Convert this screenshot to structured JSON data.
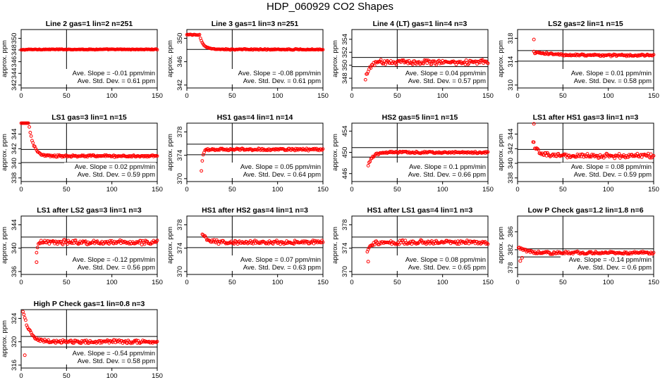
{
  "page": {
    "title": "HDP_060929  CO2 Shapes"
  },
  "chart_data": [
    {
      "type": "scatter",
      "title": "Line 2 gas=1 lin=2 n=251",
      "ylabel": "approx. ppm",
      "xlim": [
        0,
        150
      ],
      "ylim": [
        341.5,
        351.5
      ],
      "yticks": [
        342,
        344,
        346,
        348,
        350
      ],
      "xticks": [
        0,
        50,
        100,
        150
      ],
      "hlines": [
        348.1
      ],
      "vline": 50,
      "annotations": [
        "Ave. Slope = -0.01 ppm/min",
        "Ave. Std. Dev. = 0.61 ppm"
      ],
      "shape": {
        "start": 0,
        "end": 150,
        "initial": 348,
        "final": 348.1,
        "tau": 5,
        "noise": 0.05,
        "outliers": []
      }
    },
    {
      "type": "scatter",
      "title": "Line 3 gas=1 lin=3 n=251",
      "ylabel": "approx. ppm",
      "xlim": [
        0,
        150
      ],
      "ylim": [
        341.5,
        351.5
      ],
      "yticks": [
        342,
        346,
        350
      ],
      "xticks": [
        0,
        50,
        100,
        150
      ],
      "hlines": [
        348.1
      ],
      "vline": 50,
      "annotations": [
        "Ave. Slope = -0.08 ppm/min",
        "Ave. Std. Dev. = 0.61 ppm"
      ],
      "shape": {
        "start": 0,
        "end": 150,
        "initial": 350.6,
        "final": 348.1,
        "tau": 4,
        "delay": 14,
        "noise": 0.07,
        "outliers": []
      }
    },
    {
      "type": "scatter",
      "title": "Line 4 (LT) gas=1 lin=4 n=3",
      "ylabel": "approx. ppm",
      "xlim": [
        0,
        150
      ],
      "ylim": [
        346.5,
        355.5
      ],
      "yticks": [
        348,
        350,
        352,
        354
      ],
      "xticks": [
        0,
        50,
        100,
        150
      ],
      "hlines": [
        351.2,
        349.8
      ],
      "vline": 50,
      "annotations": [
        "Ave. Slope = 0.04 ppm/min",
        "Ave. Std. Dev. = 0.57 ppm"
      ],
      "shape": {
        "start": 15,
        "end": 150,
        "initial": 347.6,
        "final": 350.5,
        "tau": 4,
        "noise": 0.3,
        "outliers": []
      }
    },
    {
      "type": "scatter",
      "title": "LS2 gas=2 lin=1 n=15",
      "ylabel": "approx. ppm",
      "xlim": [
        0,
        150
      ],
      "ylim": [
        309.5,
        319.5
      ],
      "yticks": [
        310,
        314,
        318
      ],
      "xticks": [
        0,
        50,
        100,
        150
      ],
      "hlines": [
        315.9,
        314.1
      ],
      "vline": 50,
      "annotations": [
        "Ave. Slope = 0.01 ppm/min",
        "Ave. Std. Dev. = 0.58 ppm"
      ],
      "shape": {
        "start": 18,
        "end": 150,
        "initial": 315.6,
        "final": 315.1,
        "tau": 20,
        "noise": 0.15,
        "outliers": [
          [
            18,
            317.8
          ]
        ]
      }
    },
    {
      "type": "scatter",
      "title": "LS1 gas=3 lin=1 n=15",
      "ylabel": "approx. ppm",
      "xlim": [
        0,
        150
      ],
      "ylim": [
        337.5,
        345.5
      ],
      "yticks": [
        338,
        340,
        342,
        344
      ],
      "xticks": [
        0,
        50,
        100,
        150
      ],
      "hlines": [
        341.9,
        340.1
      ],
      "vline": 50,
      "annotations": [
        "Ave. Slope = 0.02 ppm/min",
        "Ave. Std. Dev. = 0.59 ppm"
      ],
      "shape": {
        "start": 0,
        "end": 150,
        "initial": 345.8,
        "final": 341,
        "tau": 5,
        "delay": 8,
        "noise": 0.12,
        "outliers": []
      }
    },
    {
      "type": "scatter",
      "title": "HS1 gas=4 lin=1 n=14",
      "ylabel": "approx. ppm",
      "xlim": [
        0,
        150
      ],
      "ylim": [
        369.5,
        379.5
      ],
      "yticks": [
        370,
        374,
        378
      ],
      "xticks": [
        0,
        50,
        100,
        150
      ],
      "hlines": [
        375.9,
        374.1
      ],
      "vline": 50,
      "annotations": [
        "Ave. Slope = 0.05 ppm/min",
        "Ave. Std. Dev. = 0.64 ppm"
      ],
      "shape": {
        "start": 16,
        "end": 150,
        "initial": 371.2,
        "final": 375,
        "tau": 1.5,
        "noise": 0.15,
        "outliers": []
      }
    },
    {
      "type": "scatter",
      "title": "HS2 gas=5 lin=1 n=15",
      "ylabel": "approx. ppm",
      "xlim": [
        0,
        150
      ],
      "ylim": [
        444.5,
        455.5
      ],
      "yticks": [
        446,
        450,
        454
      ],
      "xticks": [
        0,
        50,
        100,
        150
      ],
      "hlines": [
        450.9,
        449.1
      ],
      "vline": 50,
      "annotations": [
        "Ave. Slope = 0.1 ppm/min",
        "Ave. Std. Dev. = 0.66 ppm"
      ],
      "shape": {
        "start": 18,
        "end": 150,
        "initial": 447.6,
        "final": 450,
        "tau": 5,
        "noise": 0.15,
        "outliers": []
      }
    },
    {
      "type": "scatter",
      "title": "LS1 after HS1 gas=3 lin=1 n=3",
      "ylabel": "approx. ppm",
      "xlim": [
        0,
        150
      ],
      "ylim": [
        337.5,
        345.5
      ],
      "yticks": [
        338,
        340,
        342,
        344
      ],
      "xticks": [
        0,
        50,
        100,
        150
      ],
      "hlines": [
        341.9,
        340.1
      ],
      "vline": 50,
      "annotations": [
        "Ave. Slope = 0.08 ppm/min",
        "Ave. Std. Dev. = 0.59 ppm"
      ],
      "shape": {
        "start": 17,
        "end": 150,
        "initial": 343,
        "final": 341,
        "tau": 5,
        "noise": 0.25,
        "outliers": [
          [
            18,
            346
          ]
        ]
      }
    },
    {
      "type": "scatter",
      "title": "LS1 after LS2 gas=3 lin=1 n=3",
      "ylabel": "approx. ppm",
      "xlim": [
        0,
        150
      ],
      "ylim": [
        335.5,
        345.5
      ],
      "yticks": [
        336,
        340,
        344
      ],
      "xticks": [
        0,
        50,
        100,
        150
      ],
      "hlines": [
        341.9,
        340.1
      ],
      "vline": 50,
      "annotations": [
        "Ave. Slope = -0.12 ppm/min",
        "Ave. Std. Dev. = 0.56 ppm"
      ],
      "shape": {
        "start": 17,
        "end": 150,
        "initial": 339.5,
        "final": 341,
        "tau": 1.5,
        "noise": 0.3,
        "outliers": [
          [
            17,
            337.6
          ]
        ]
      }
    },
    {
      "type": "scatter",
      "title": "HS1 after HS2 gas=4 lin=1 n=3",
      "ylabel": "approx. ppm",
      "xlim": [
        0,
        150
      ],
      "ylim": [
        369.5,
        379.5
      ],
      "yticks": [
        370,
        374,
        378
      ],
      "xticks": [
        0,
        50,
        100,
        150
      ],
      "hlines": [
        375.9,
        374.1
      ],
      "vline": 50,
      "annotations": [
        "Ave. Slope = 0.07 ppm/min",
        "Ave. Std. Dev. = 0.63 ppm"
      ],
      "shape": {
        "start": 17,
        "end": 150,
        "initial": 376.5,
        "final": 375,
        "tau": 5,
        "noise": 0.25,
        "outliers": []
      }
    },
    {
      "type": "scatter",
      "title": "HS1 after LS1 gas=4 lin=1 n=3",
      "ylabel": "approx. ppm",
      "xlim": [
        0,
        150
      ],
      "ylim": [
        369.5,
        379.5
      ],
      "yticks": [
        370,
        374,
        378
      ],
      "xticks": [
        0,
        50,
        100,
        150
      ],
      "hlines": [
        375.9,
        374.1
      ],
      "vline": 50,
      "annotations": [
        "Ave. Slope = 0.08 ppm/min",
        "Ave. Std. Dev. = 0.65 ppm"
      ],
      "shape": {
        "start": 17,
        "end": 150,
        "initial": 373.4,
        "final": 375,
        "tau": 3,
        "noise": 0.3,
        "outliers": [
          [
            18,
            371.7
          ]
        ]
      }
    },
    {
      "type": "scatter",
      "title": "Low P Check gas=1.2 lin=1.8 n=6",
      "ylabel": "approx. ppm",
      "xlim": [
        0,
        150
      ],
      "ylim": [
        376.5,
        389.5
      ],
      "yticks": [
        378,
        382,
        386
      ],
      "xticks": [
        0,
        50,
        100,
        150
      ],
      "hlines": [
        382.2,
        380.4
      ],
      "vline": 50,
      "annotations": [
        "Ave. Slope = -0.14 ppm/min",
        "Ave. Std. Dev. = 0.6 ppm"
      ],
      "shape": {
        "start": 1,
        "end": 150,
        "initial": 382.6,
        "final": 381.3,
        "tau": 8,
        "noise": 0.25,
        "outliers": [
          [
            3,
            379.5
          ],
          [
            5,
            380.2
          ]
        ]
      }
    },
    {
      "type": "scatter",
      "title": "High P Check gas=1 lin=0.8 n=3",
      "ylabel": "approx. ppm",
      "xlim": [
        0,
        150
      ],
      "ylim": [
        315.5,
        325.5
      ],
      "yticks": [
        316,
        320,
        324
      ],
      "xticks": [
        0,
        50,
        100,
        150
      ],
      "hlines": [
        320.9,
        319.1
      ],
      "vline": 50,
      "annotations": [
        "Ave. Slope = -0.54 ppm/min",
        "Ave. Std. Dev. = 0.58 ppm"
      ],
      "shape": {
        "start": 2,
        "end": 150,
        "initial": 325.2,
        "final": 320,
        "tau": 7,
        "noise": 0.22,
        "outliers": [
          [
            4,
            317.7
          ]
        ]
      }
    }
  ]
}
